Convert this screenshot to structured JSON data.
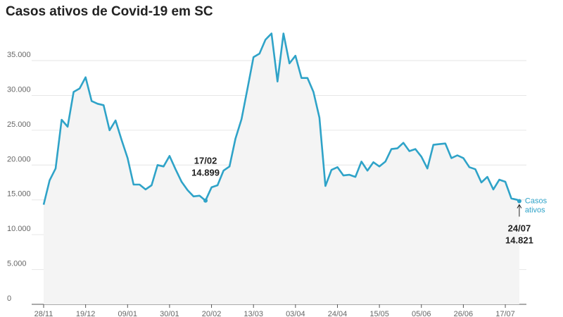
{
  "chart_data": {
    "type": "line",
    "title": "Casos ativos de Covid-19 em SC",
    "x": [
      "28/11",
      "01/12",
      "04/12",
      "07/12",
      "10/12",
      "13/12",
      "16/12",
      "19/12",
      "22/12",
      "25/12",
      "28/12",
      "31/12",
      "03/01",
      "06/01",
      "09/01",
      "12/01",
      "15/01",
      "18/01",
      "21/01",
      "24/01",
      "27/01",
      "30/01",
      "02/02",
      "05/02",
      "08/02",
      "11/02",
      "14/02",
      "17/02",
      "20/02",
      "23/02",
      "26/02",
      "01/03",
      "04/03",
      "07/03",
      "10/03",
      "13/03",
      "16/03",
      "19/03",
      "22/03",
      "25/03",
      "28/03",
      "31/03",
      "03/04",
      "06/04",
      "09/04",
      "12/04",
      "15/04",
      "18/04",
      "21/04",
      "24/04",
      "27/04",
      "30/04",
      "03/05",
      "06/05",
      "09/05",
      "12/05",
      "15/05",
      "18/05",
      "21/05",
      "24/05",
      "27/05",
      "30/05",
      "02/06",
      "05/06",
      "08/06",
      "11/06",
      "14/06",
      "17/06",
      "20/06",
      "23/06",
      "26/06",
      "29/06",
      "02/07",
      "05/07",
      "08/07",
      "11/07",
      "14/07",
      "17/07",
      "20/07",
      "23/07",
      "24/07"
    ],
    "series": [
      {
        "name": "Casos ativos",
        "color": "#2fa3c8",
        "values": [
          14300,
          17800,
          19500,
          26500,
          25500,
          30500,
          31000,
          32600,
          29200,
          28800,
          28600,
          25000,
          26400,
          23600,
          21000,
          17200,
          17200,
          16500,
          17100,
          20000,
          19800,
          21300,
          19400,
          17600,
          16400,
          15500,
          15600,
          14899,
          16800,
          17100,
          19200,
          19800,
          23800,
          26600,
          31000,
          35500,
          36000,
          38000,
          38900,
          32000,
          38900,
          34600,
          35700,
          32500,
          32500,
          30500,
          26800,
          17000,
          19300,
          19700,
          18500,
          18600,
          18300,
          20500,
          19200,
          20400,
          19800,
          20500,
          22300,
          22400,
          23200,
          22000,
          22300,
          21200,
          19500,
          22900,
          23000,
          23100,
          21000,
          21400,
          21000,
          19700,
          19400,
          17500,
          18300,
          16500,
          17900,
          17600,
          15200,
          15000,
          14821
        ],
        "value_labels": [
          null,
          null,
          null,
          null,
          null,
          null,
          null,
          null,
          null,
          null,
          null,
          null,
          null,
          null,
          null,
          null,
          null,
          null,
          null,
          null,
          null,
          null,
          null,
          null,
          null,
          null,
          null,
          "14.899",
          null,
          null,
          null,
          null,
          null,
          null,
          null,
          null,
          null,
          null,
          null,
          null,
          null,
          null,
          null,
          null,
          null,
          null,
          null,
          null,
          null,
          null,
          null,
          null,
          null,
          null,
          null,
          null,
          null,
          null,
          null,
          null,
          null,
          null,
          null,
          null,
          null,
          null,
          null,
          null,
          null,
          null,
          null,
          null,
          null,
          null,
          null,
          null,
          null,
          null,
          null,
          null,
          "14.821"
        ]
      }
    ],
    "xticks": [
      "28/11",
      "19/12",
      "09/01",
      "30/01",
      "20/02",
      "13/03",
      "03/04",
      "24/04",
      "15/05",
      "05/06",
      "26/06",
      "17/07"
    ],
    "ylim": [
      0,
      40000
    ],
    "yticks": [
      0,
      {
        "value": 5000,
        "label": "5.000"
      },
      {
        "value": 10000,
        "label": "10.000"
      },
      {
        "value": 15000,
        "label": "15.000"
      },
      {
        "value": 20000,
        "label": "20.000"
      },
      {
        "value": 25000,
        "label": "25.000"
      },
      {
        "value": 30000,
        "label": "30.000"
      },
      {
        "value": 35000,
        "label": "35.000"
      }
    ],
    "grid": true
  }
}
